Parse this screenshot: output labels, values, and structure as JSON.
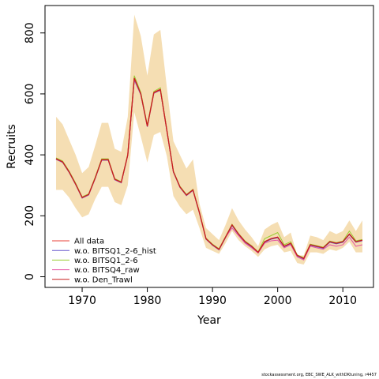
{
  "chart_data": {
    "type": "line",
    "xlabel": "Year",
    "ylabel": "Recruits",
    "xlim": [
      1964.3,
      2014.7
    ],
    "ylim": [
      -35,
      890
    ],
    "xticks": [
      1970,
      1980,
      1990,
      2000,
      2010
    ],
    "yticks": [
      0,
      200,
      400,
      600,
      800
    ],
    "grid": false,
    "legend_position": "bottom-left",
    "band_color": "#f5deb3",
    "x": [
      1966,
      1967,
      1968,
      1969,
      1970,
      1971,
      1972,
      1973,
      1974,
      1975,
      1976,
      1977,
      1978,
      1979,
      1980,
      1981,
      1982,
      1983,
      1984,
      1985,
      1986,
      1987,
      1988,
      1989,
      1990,
      1991,
      1992,
      1993,
      1994,
      1995,
      1996,
      1997,
      1998,
      1999,
      2000,
      2001,
      2002,
      2003,
      2004,
      2005,
      2006,
      2007,
      2008,
      2009,
      2010,
      2011,
      2012,
      2013
    ],
    "band_upper": [
      525,
      500,
      450,
      400,
      340,
      360,
      430,
      505,
      505,
      420,
      410,
      525,
      860,
      790,
      660,
      795,
      810,
      620,
      445,
      400,
      355,
      385,
      240,
      160,
      140,
      120,
      170,
      225,
      185,
      155,
      130,
      100,
      155,
      170,
      180,
      130,
      145,
      70,
      70,
      135,
      130,
      120,
      150,
      140,
      150,
      185,
      150,
      185
    ],
    "band_lower": [
      285,
      285,
      260,
      225,
      195,
      205,
      255,
      295,
      295,
      245,
      235,
      300,
      540,
      460,
      375,
      465,
      475,
      395,
      265,
      230,
      205,
      220,
      160,
      95,
      85,
      75,
      110,
      150,
      120,
      100,
      85,
      65,
      90,
      100,
      105,
      80,
      85,
      45,
      40,
      80,
      80,
      75,
      90,
      85,
      95,
      115,
      80,
      80
    ],
    "series": [
      {
        "name": "All data",
        "color": "#e8403a",
        "values": [
          388,
          378,
          345,
          305,
          260,
          270,
          325,
          385,
          385,
          320,
          310,
          400,
          650,
          600,
          495,
          605,
          615,
          480,
          345,
          295,
          268,
          285,
          210,
          125,
          105,
          90,
          130,
          170,
          140,
          115,
          100,
          80,
          115,
          125,
          130,
          100,
          110,
          70,
          60,
          105,
          100,
          95,
          115,
          110,
          115,
          140,
          115,
          120
        ]
      },
      {
        "name": "w.o. BITSQ1_2-6_hist",
        "color": "#6a5acd",
        "values": [
          385,
          375,
          342,
          302,
          258,
          268,
          322,
          382,
          382,
          318,
          308,
          398,
          645,
          597,
          492,
          602,
          612,
          478,
          343,
          293,
          266,
          283,
          208,
          123,
          103,
          88,
          128,
          168,
          138,
          113,
          98,
          78,
          113,
          123,
          128,
          98,
          108,
          68,
          58,
          103,
          98,
          93,
          113,
          108,
          113,
          138,
          113,
          118
        ]
      },
      {
        "name": "w.o. BITSQ1_2-6",
        "color": "#9acd32",
        "values": [
          390,
          380,
          347,
          307,
          262,
          272,
          327,
          387,
          387,
          322,
          312,
          402,
          660,
          605,
          498,
          608,
          620,
          482,
          347,
          297,
          270,
          287,
          212,
          127,
          107,
          92,
          132,
          172,
          142,
          117,
          102,
          82,
          125,
          135,
          145,
          105,
          115,
          72,
          62,
          107,
          102,
          97,
          117,
          112,
          117,
          150,
          118,
          122
        ]
      },
      {
        "name": "w.o. BITSQ4_raw",
        "color": "#e455a5",
        "values": [
          386,
          376,
          343,
          303,
          259,
          269,
          323,
          383,
          383,
          319,
          309,
          399,
          648,
          598,
          493,
          603,
          613,
          479,
          344,
          294,
          267,
          284,
          209,
          124,
          104,
          89,
          129,
          160,
          135,
          110,
          95,
          78,
          110,
          118,
          120,
          95,
          105,
          65,
          55,
          100,
          95,
          90,
          105,
          100,
          105,
          130,
          100,
          105
        ]
      },
      {
        "name": "w.o. Den_Trawl",
        "color": "#c81e1e",
        "values": [
          387,
          377,
          344,
          304,
          260,
          270,
          324,
          384,
          384,
          320,
          310,
          400,
          652,
          600,
          494,
          604,
          614,
          480,
          345,
          295,
          268,
          285,
          210,
          125,
          105,
          90,
          130,
          170,
          140,
          115,
          100,
          80,
          115,
          125,
          130,
          100,
          110,
          70,
          60,
          105,
          100,
          95,
          115,
          110,
          115,
          140,
          115,
          120
        ]
      }
    ]
  },
  "credit": "stockassessment.org, EBC_SWE_ALK_withDKtuning, r4457"
}
